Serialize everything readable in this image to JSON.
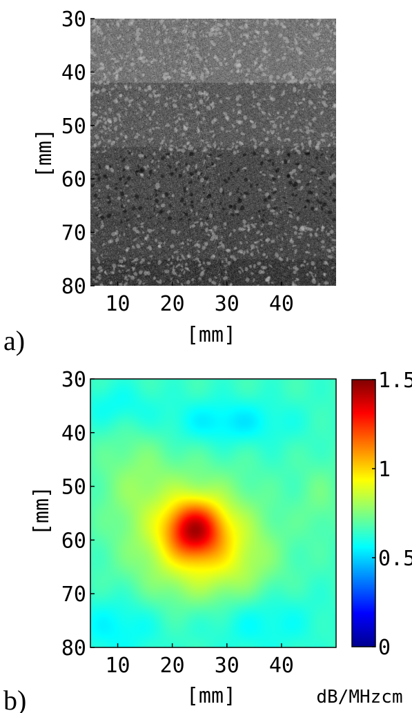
{
  "panels": [
    {
      "label": "a)",
      "xlabel": "[mm]",
      "ylabel": "[mm]",
      "x_ticks": [
        "10",
        "20",
        "30",
        "40"
      ],
      "y_ticks": [
        "30",
        "40",
        "50",
        "60",
        "70",
        "80"
      ]
    },
    {
      "label": "b)",
      "xlabel": "[mm]",
      "ylabel": "[mm]",
      "x_ticks": [
        "10",
        "20",
        "30",
        "40"
      ],
      "y_ticks": [
        "30",
        "40",
        "50",
        "60",
        "70",
        "80"
      ],
      "colorbar": {
        "ticks": [
          "1.5",
          "1",
          "0.5",
          "0"
        ],
        "unit": "dB/MHzcm"
      }
    }
  ],
  "chart_data": [
    {
      "type": "heatmap",
      "title": "",
      "xlabel": "[mm]",
      "ylabel": "[mm]",
      "xlim": [
        5,
        50
      ],
      "ylim": [
        80,
        30
      ],
      "x_ticks": [
        10,
        20,
        30,
        40
      ],
      "y_ticks": [
        30,
        40,
        50,
        60,
        70,
        80
      ],
      "colormap": "gray",
      "layers": [
        {
          "depth_from": 30,
          "depth_to": 42,
          "mean_gray": 0.46
        },
        {
          "depth_from": 42,
          "depth_to": 54,
          "mean_gray": 0.36
        },
        {
          "depth_from": 54,
          "depth_to": 66,
          "mean_gray": 0.3
        },
        {
          "depth_from": 66,
          "depth_to": 75,
          "mean_gray": 0.28
        },
        {
          "depth_from": 75,
          "depth_to": 80,
          "mean_gray": 0.23
        }
      ]
    },
    {
      "type": "heatmap",
      "title": "",
      "xlabel": "[mm]",
      "ylabel": "[mm]",
      "xlim": [
        5,
        50
      ],
      "ylim": [
        80,
        30
      ],
      "x_ticks": [
        10,
        20,
        30,
        40
      ],
      "y_ticks": [
        30,
        40,
        50,
        60,
        70,
        80
      ],
      "colormap": "jet",
      "clim": [
        0,
        1.5
      ],
      "colorbar_ticks": [
        0,
        0.5,
        1,
        1.5
      ],
      "colorbar_label": "dB/MHzcm",
      "background_value": 0.65,
      "features": [
        {
          "x": 24,
          "y": 58,
          "sx": 3.5,
          "sy": 3.5,
          "amplitude": 0.5
        },
        {
          "x": 24,
          "y": 60,
          "sx": 8,
          "sy": 8,
          "amplitude": 0.27
        },
        {
          "x": 13,
          "y": 48,
          "sx": 5,
          "sy": 7,
          "amplitude": 0.09
        },
        {
          "x": 32,
          "y": 64,
          "sx": 6,
          "sy": 6,
          "amplitude": 0.08
        },
        {
          "x": 47,
          "y": 52,
          "sx": 3,
          "sy": 5,
          "amplitude": 0.07
        },
        {
          "x": 30,
          "y": 38,
          "sx": 8,
          "sy": 3,
          "amplitude": -0.12
        },
        {
          "x": 10,
          "y": 35,
          "sx": 5,
          "sy": 3,
          "amplitude": -0.08
        },
        {
          "x": 10,
          "y": 76,
          "sx": 6,
          "sy": 4,
          "amplitude": -0.1
        },
        {
          "x": 35,
          "y": 75,
          "sx": 8,
          "sy": 4,
          "amplitude": -0.1
        }
      ]
    }
  ]
}
